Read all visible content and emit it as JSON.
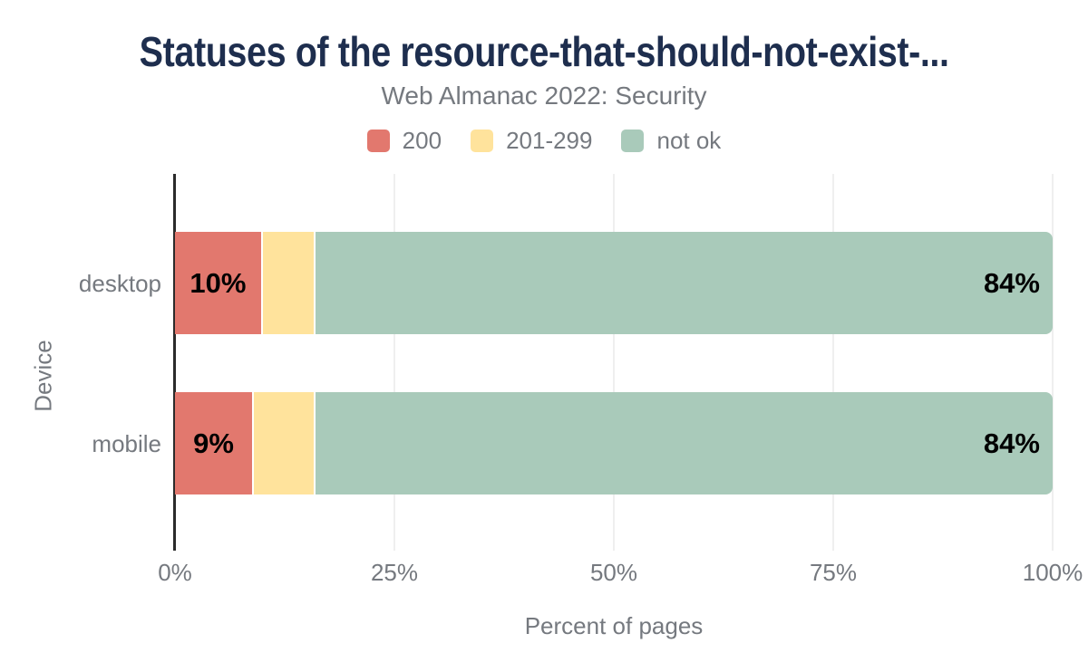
{
  "chart_data": {
    "type": "bar",
    "orientation": "horizontal",
    "stacked": true,
    "title": "Statuses of the resource-that-should-not-exist-...",
    "subtitle": "Web Almanac 2022: Security",
    "xlabel": "Percent of pages",
    "ylabel": "Device",
    "xlim": [
      0,
      100
    ],
    "x_ticks": [
      "0%",
      "25%",
      "50%",
      "75%",
      "100%"
    ],
    "x_tick_values": [
      0,
      25,
      50,
      75,
      100
    ],
    "grid": "vertical",
    "legend_position": "top",
    "categories": [
      "desktop",
      "mobile"
    ],
    "series": [
      {
        "name": "200",
        "color": "#e2786e",
        "values": [
          10,
          9
        ],
        "value_labels": [
          "10%",
          "9%"
        ],
        "label_align": "center"
      },
      {
        "name": "201-299",
        "color": "#ffe39c",
        "values": [
          6,
          7
        ],
        "value_labels": [
          "",
          ""
        ],
        "label_align": "center"
      },
      {
        "name": "not ok",
        "color": "#a9caba",
        "values": [
          84,
          84
        ],
        "value_labels": [
          "84%",
          "84%"
        ],
        "label_align": "right"
      }
    ]
  },
  "colors": {
    "background": "#ffffff",
    "title_text": "#1e2e4e",
    "muted_text": "#75797f",
    "value_label_text": "#000000",
    "axis_line": "#2b2b2b",
    "gridline": "#efefef"
  },
  "layout_values": {
    "bar_rows": [
      {
        "category": "desktop",
        "top": 64,
        "height": 113,
        "label_center_y": 313
      },
      {
        "category": "mobile",
        "top": 241,
        "height": 113,
        "label_center_y": 490
      }
    ]
  }
}
